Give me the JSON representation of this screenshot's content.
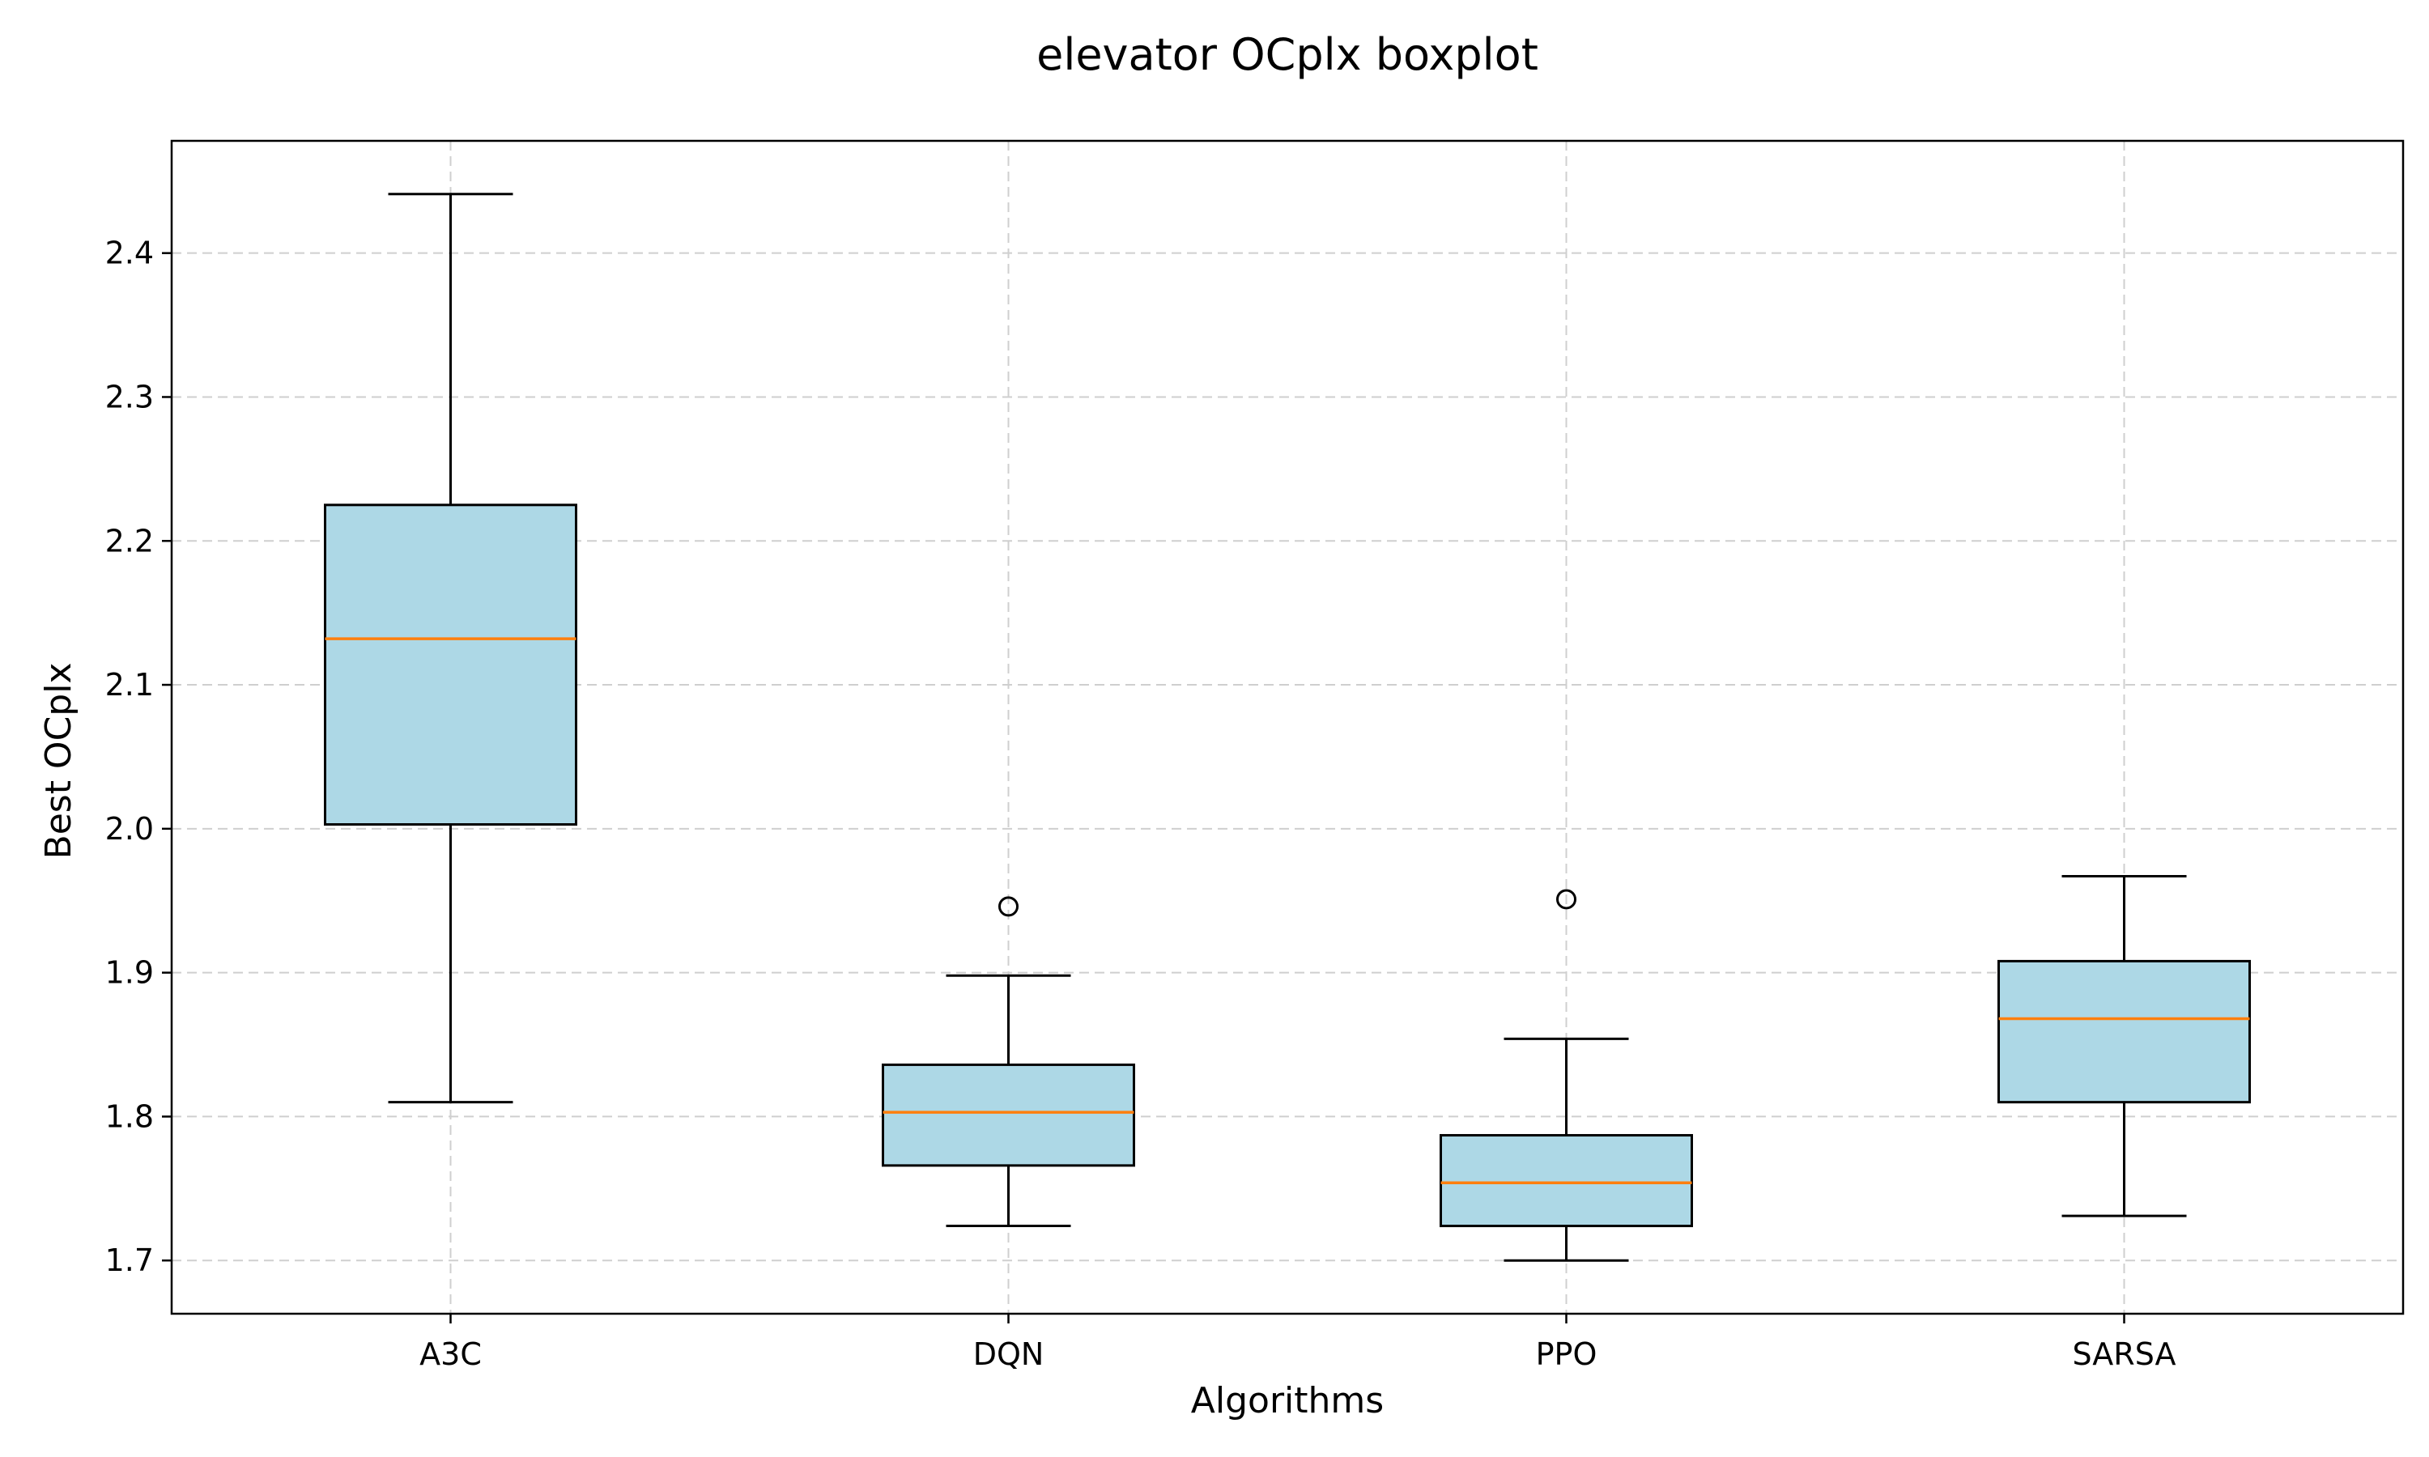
{
  "chart_data": {
    "type": "boxplot",
    "title": "elevator OCplx boxplot",
    "xlabel": "Algorithms",
    "ylabel": "Best OCplx",
    "categories": [
      "A3C",
      "DQN",
      "PPO",
      "SARSA"
    ],
    "boxes": [
      {
        "name": "A3C",
        "whisker_low": 1.81,
        "q1": 2.003,
        "median": 2.132,
        "q3": 2.225,
        "whisker_high": 2.441,
        "outliers": []
      },
      {
        "name": "DQN",
        "whisker_low": 1.724,
        "q1": 1.766,
        "median": 1.803,
        "q3": 1.836,
        "whisker_high": 1.898,
        "outliers": [
          1.946
        ]
      },
      {
        "name": "PPO",
        "whisker_low": 1.7,
        "q1": 1.724,
        "median": 1.754,
        "q3": 1.787,
        "whisker_high": 1.854,
        "outliers": [
          1.951
        ]
      },
      {
        "name": "SARSA",
        "whisker_low": 1.731,
        "q1": 1.81,
        "median": 1.868,
        "q3": 1.908,
        "whisker_high": 1.967,
        "outliers": []
      }
    ],
    "yticks": [
      1.7,
      1.8,
      1.9,
      2.0,
      2.1,
      2.2,
      2.3,
      2.4
    ],
    "ytick_labels": [
      "1.7",
      "1.8",
      "1.9",
      "2.0",
      "2.1",
      "2.2",
      "2.3",
      "2.4"
    ],
    "ylim": [
      1.663,
      2.478
    ],
    "grid": true,
    "colors": {
      "box_fill": "#add8e6",
      "median": "#ff7f0e",
      "edge": "#000000",
      "grid": "#cfcfcf"
    }
  }
}
